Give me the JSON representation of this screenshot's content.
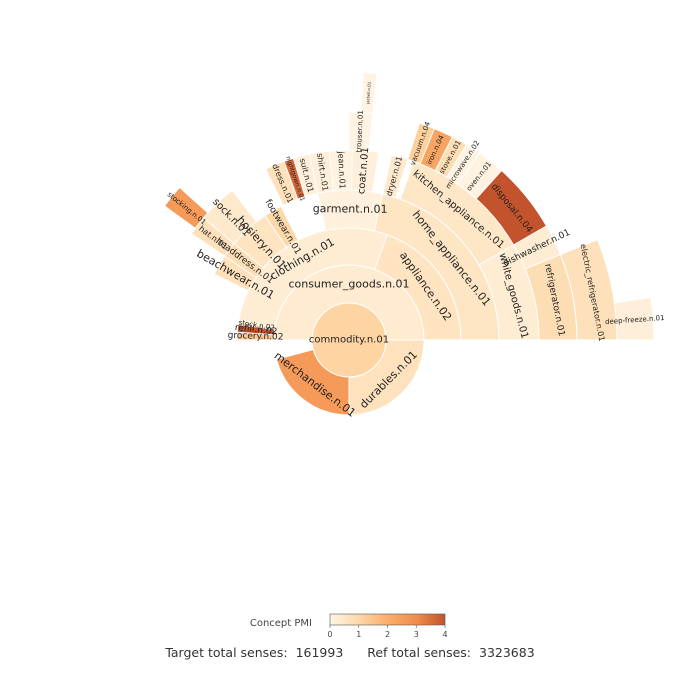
{
  "chart_data": {
    "type": "sunburst",
    "colorbar": {
      "title": "Concept PMI",
      "min": 0,
      "max": 4,
      "ticks": [
        "0",
        "1",
        "2",
        "3",
        "4"
      ],
      "colors": [
        "#fff5e6",
        "#fdd8a8",
        "#fcae6b",
        "#f08d4c",
        "#c2532c"
      ]
    },
    "footer": {
      "target_label": "Target total senses:",
      "target_value": "161993",
      "ref_label": "Ref total senses:",
      "ref_value": "3323683"
    },
    "nodes": [
      {
        "label": "commodity.n.01",
        "ring": 0,
        "start": 0,
        "end": 360,
        "pmi": 1.1
      },
      {
        "label": "consumer_goods.n.01",
        "ring": 1,
        "start": 180,
        "end": 360,
        "pmi": 0.35
      },
      {
        "label": "durables.n.01",
        "ring": 1,
        "start": 0,
        "end": 90,
        "pmi": 0.65
      },
      {
        "label": "merchandise.n.01",
        "ring": 1,
        "start": 90,
        "end": 165,
        "pmi": 2.6
      },
      {
        "label": "clothing.n.01",
        "ring": 2,
        "start": 190,
        "end": 290,
        "pmi": 0.3
      },
      {
        "label": "appliance.n.02",
        "ring": 2,
        "start": 290,
        "end": 360,
        "pmi": 0.6
      },
      {
        "label": "grocery.n.02",
        "ring": 2,
        "start": 180,
        "end": 184,
        "pmi": 1.4
      },
      {
        "label": "refill.n.02",
        "ring": 2,
        "start": 184,
        "end": 188,
        "pmi": 4.0
      },
      {
        "label": "stock.n.02",
        "ring": 2,
        "start": 188,
        "end": 190,
        "pmi": 0.5
      },
      {
        "label": "garment.n.01",
        "ring": 3,
        "start": 258,
        "end": 283,
        "pmi": 0.15
      },
      {
        "label": "hosiery.n.01",
        "ring": 3,
        "start": 220,
        "end": 236,
        "pmi": 0.6
      },
      {
        "label": "footwear.n.01",
        "ring": 3,
        "start": 236,
        "end": 243,
        "pmi": 1.0
      },
      {
        "label": "beachwear.n.01",
        "ring": 3,
        "start": 206,
        "end": 214,
        "pmi": 0.7
      },
      {
        "label": "headdress.n.01",
        "ring": 3,
        "start": 214,
        "end": 220,
        "pmi": 0.8
      },
      {
        "label": "home_appliance.n.01",
        "ring": 3,
        "start": 283,
        "end": 360,
        "pmi": 0.55
      },
      {
        "label": "sock.n.01",
        "ring": 4,
        "start": 220,
        "end": 232,
        "pmi": 0.4
      },
      {
        "label": "hat.n.01",
        "ring": 4,
        "start": 214,
        "end": 220,
        "pmi": 0.7
      },
      {
        "label": "dress.n.01",
        "ring": 4,
        "start": 244,
        "end": 250,
        "pmi": 0.7
      },
      {
        "label": "nightgown.n.01",
        "ring": 4,
        "start": 250,
        "end": 253,
        "pmi": 3.6
      },
      {
        "label": "suit.n.01",
        "ring": 4,
        "start": 253,
        "end": 258,
        "pmi": 0.2
      },
      {
        "label": "shirt.n.01",
        "ring": 4,
        "start": 258,
        "end": 264,
        "pmi": 0.2
      },
      {
        "label": "jean.n.01",
        "ring": 4,
        "start": 264,
        "end": 271,
        "pmi": 0.1
      },
      {
        "label": "coat.n.01",
        "ring": 4,
        "start": 271,
        "end": 279,
        "pmi": 0.2
      },
      {
        "label": "dryer.n.01",
        "ring": 4,
        "start": 283,
        "end": 288,
        "pmi": 0.4
      },
      {
        "label": "kitchen_appliance.n.01",
        "ring": 4,
        "start": 290,
        "end": 330,
        "pmi": 0.5
      },
      {
        "label": "white_goods.n.01",
        "ring": 4,
        "start": 330,
        "end": 360,
        "pmi": 0.3
      },
      {
        "label": "stocking.n.01",
        "ring": 5,
        "start": 216,
        "end": 222,
        "pmi": 2.6
      },
      {
        "label": "trouser.n.01",
        "ring": 5,
        "start": 270,
        "end": 276,
        "pmi": 0.05
      },
      {
        "label": "vacuum.n.04",
        "ring": 5,
        "start": 288,
        "end": 292,
        "pmi": 1.2
      },
      {
        "label": "iron.n.04",
        "ring": 5,
        "start": 292,
        "end": 297,
        "pmi": 2.3
      },
      {
        "label": "stove.n.01",
        "ring": 5,
        "start": 297,
        "end": 301,
        "pmi": 0.8
      },
      {
        "label": "microwave.n.02",
        "ring": 5,
        "start": 301,
        "end": 305,
        "pmi": 0.05
      },
      {
        "label": "oven.n.01",
        "ring": 5,
        "start": 305,
        "end": 312,
        "pmi": 0.1
      },
      {
        "label": "disposal.n.04",
        "ring": 5,
        "start": 312,
        "end": 330,
        "pmi": 4.0
      },
      {
        "label": "dishwasher.n.01",
        "ring": 5,
        "start": 330,
        "end": 338,
        "pmi": 0.3
      },
      {
        "label": "refrigerator.n.01",
        "ring": 5,
        "start": 338,
        "end": 360,
        "pmi": 0.8
      },
      {
        "label": "jacket.n.01",
        "ring": 6,
        "start": 273,
        "end": 276,
        "pmi": 0.05
      },
      {
        "label": "electric_refrigerator.n.01",
        "ring": 6,
        "start": 338,
        "end": 360,
        "pmi": 0.7
      },
      {
        "label": "deep-freeze.n.01",
        "ring": 7,
        "start": 352,
        "end": 360,
        "pmi": 0.2
      }
    ]
  }
}
